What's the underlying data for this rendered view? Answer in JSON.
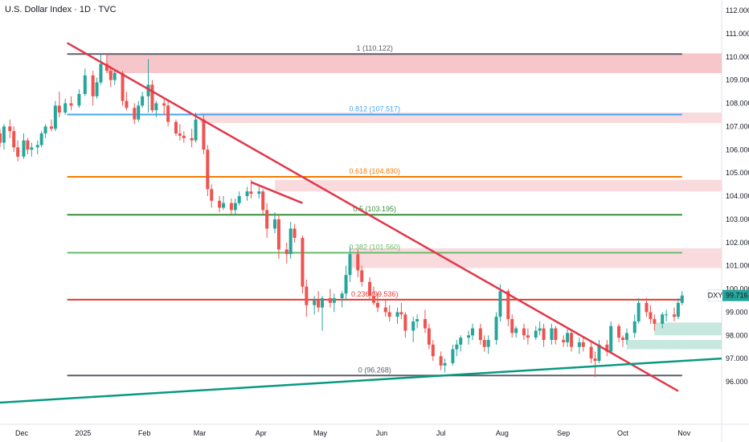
{
  "chart_data": {
    "type": "candlestick",
    "title": "U.S. Dollar Index · 1D · TVC",
    "symbol": "DXY",
    "last_price": "99.716",
    "ylim": [
      95.0,
      112.3
    ],
    "y_ticks": [
      "112.000",
      "111.000",
      "110.000",
      "109.000",
      "108.000",
      "107.000",
      "106.000",
      "105.000",
      "104.000",
      "103.000",
      "102.000",
      "101.000",
      "100.000",
      "99.000",
      "98.000",
      "97.000",
      "96.000"
    ],
    "y_tick_values": [
      112,
      111,
      110,
      109,
      108,
      107,
      106,
      105,
      104,
      103,
      102,
      101,
      100,
      99,
      98,
      97,
      96
    ],
    "x_ticks": [
      {
        "label": "Dec",
        "date": "2024-12-01"
      },
      {
        "label": "2025",
        "date": "2025-01-01"
      },
      {
        "label": "Feb",
        "date": "2025-02-01"
      },
      {
        "label": "Mar",
        "date": "2025-03-01"
      },
      {
        "label": "Apr",
        "date": "2025-04-01"
      },
      {
        "label": "May",
        "date": "2025-05-01"
      },
      {
        "label": "Jun",
        "date": "2025-06-01"
      },
      {
        "label": "Jul",
        "date": "2025-07-01"
      },
      {
        "label": "Aug",
        "date": "2025-08-01"
      },
      {
        "label": "Sep",
        "date": "2025-09-01"
      },
      {
        "label": "Oct",
        "date": "2025-10-01"
      },
      {
        "label": "Nov",
        "date": "2025-11-01"
      }
    ],
    "fib_levels": [
      {
        "label": "1 (110.122)",
        "value": 110.122,
        "color": "#5d606b"
      },
      {
        "label": "0.812 (107.517)",
        "value": 107.517,
        "color": "#42a5f5"
      },
      {
        "label": "0.618 (104.830)",
        "value": 104.83,
        "color": "#f57c00"
      },
      {
        "label": "0.5 (103.195)",
        "value": 103.195,
        "color": "#388e3c"
      },
      {
        "label": "0.382 (101.560)",
        "value": 101.56,
        "color": "#66bb6a"
      },
      {
        "label": "0.236 (99.536)",
        "value": 99.536,
        "color": "#e53935"
      },
      {
        "label": "0 (96.268)",
        "value": 96.268,
        "color": "#5d606b"
      }
    ],
    "fib_start_date": "2024-12-24",
    "candles_daily": [
      [
        "2024-11-20",
        106.7,
        106.9,
        106.1,
        106.3
      ],
      [
        "2024-11-22",
        106.3,
        107.1,
        106.0,
        107.0
      ],
      [
        "2024-11-25",
        107.0,
        107.3,
        106.5,
        106.8
      ],
      [
        "2024-11-27",
        106.8,
        107.0,
        105.9,
        106.1
      ],
      [
        "2024-11-29",
        106.1,
        106.4,
        105.5,
        105.7
      ],
      [
        "2024-12-02",
        105.7,
        106.7,
        105.6,
        106.4
      ],
      [
        "2024-12-04",
        106.4,
        106.5,
        105.8,
        106.0
      ],
      [
        "2024-12-06",
        106.0,
        106.3,
        105.7,
        106.1
      ],
      [
        "2024-12-09",
        106.1,
        106.4,
        105.8,
        106.2
      ],
      [
        "2024-12-11",
        106.2,
        106.8,
        106.1,
        106.7
      ],
      [
        "2024-12-13",
        106.7,
        107.1,
        106.5,
        107.0
      ],
      [
        "2024-12-16",
        107.0,
        107.3,
        106.8,
        106.9
      ],
      [
        "2024-12-18",
        106.9,
        108.1,
        106.8,
        107.9
      ],
      [
        "2024-12-20",
        107.9,
        108.5,
        107.4,
        107.6
      ],
      [
        "2024-12-23",
        107.6,
        108.2,
        107.5,
        108.0
      ],
      [
        "2024-12-26",
        108.0,
        108.3,
        107.7,
        107.9
      ],
      [
        "2024-12-30",
        107.9,
        108.6,
        107.8,
        108.4
      ],
      [
        "2025-01-02",
        108.4,
        109.5,
        108.3,
        109.2
      ],
      [
        "2025-01-06",
        109.2,
        109.4,
        107.9,
        108.3
      ],
      [
        "2025-01-08",
        108.3,
        109.1,
        108.2,
        108.9
      ],
      [
        "2025-01-10",
        108.9,
        110.1,
        108.8,
        109.7
      ],
      [
        "2025-01-13",
        109.7,
        110.12,
        109.3,
        109.4
      ],
      [
        "2025-01-15",
        109.4,
        109.6,
        108.7,
        109.0
      ],
      [
        "2025-01-17",
        109.0,
        109.4,
        108.8,
        109.3
      ],
      [
        "2025-01-21",
        109.3,
        109.4,
        107.9,
        108.1
      ],
      [
        "2025-01-23",
        108.1,
        108.5,
        107.7,
        107.8
      ],
      [
        "2025-01-27",
        107.8,
        108.0,
        107.1,
        107.3
      ],
      [
        "2025-01-29",
        107.3,
        108.1,
        107.2,
        107.9
      ],
      [
        "2025-01-31",
        107.9,
        108.5,
        107.8,
        108.3
      ],
      [
        "2025-02-03",
        108.3,
        109.9,
        107.6,
        108.8
      ],
      [
        "2025-02-05",
        108.8,
        109.0,
        107.6,
        107.7
      ],
      [
        "2025-02-07",
        107.7,
        108.1,
        107.4,
        108.0
      ],
      [
        "2025-02-11",
        108.0,
        108.2,
        107.5,
        107.9
      ],
      [
        "2025-02-13",
        107.9,
        108.1,
        107.0,
        107.2
      ],
      [
        "2025-02-17",
        107.2,
        107.3,
        106.6,
        106.7
      ],
      [
        "2025-02-19",
        106.7,
        107.1,
        106.4,
        106.6
      ],
      [
        "2025-02-21",
        106.6,
        106.8,
        106.3,
        106.5
      ],
      [
        "2025-02-25",
        106.5,
        106.9,
        106.1,
        106.4
      ],
      [
        "2025-02-27",
        106.4,
        107.6,
        106.3,
        107.3
      ],
      [
        "2025-03-03",
        107.3,
        107.5,
        105.8,
        106.0
      ],
      [
        "2025-03-05",
        106.0,
        106.2,
        104.0,
        104.3
      ],
      [
        "2025-03-07",
        104.3,
        104.5,
        103.5,
        103.8
      ],
      [
        "2025-03-11",
        103.8,
        104.0,
        103.3,
        103.5
      ],
      [
        "2025-03-13",
        103.5,
        104.0,
        103.4,
        103.7
      ],
      [
        "2025-03-17",
        103.7,
        103.9,
        103.2,
        103.4
      ],
      [
        "2025-03-19",
        103.4,
        103.9,
        103.2,
        103.7
      ],
      [
        "2025-03-21",
        103.7,
        104.2,
        103.6,
        104.0
      ],
      [
        "2025-03-25",
        104.0,
        104.4,
        103.8,
        104.2
      ],
      [
        "2025-03-27",
        104.2,
        104.7,
        103.9,
        104.1
      ],
      [
        "2025-03-31",
        104.1,
        104.4,
        103.9,
        104.2
      ],
      [
        "2025-04-02",
        104.2,
        104.3,
        103.2,
        103.4
      ],
      [
        "2025-04-04",
        103.4,
        103.7,
        102.2,
        102.6
      ],
      [
        "2025-04-08",
        102.6,
        103.3,
        102.4,
        103.0
      ],
      [
        "2025-04-10",
        103.0,
        103.2,
        101.3,
        101.7
      ],
      [
        "2025-04-14",
        101.7,
        102.0,
        101.1,
        101.5
      ],
      [
        "2025-04-16",
        101.5,
        102.9,
        101.3,
        102.6
      ],
      [
        "2025-04-18",
        102.6,
        102.8,
        102.0,
        102.2
      ],
      [
        "2025-04-22",
        102.2,
        102.3,
        99.8,
        100.1
      ],
      [
        "2025-04-24",
        100.1,
        100.4,
        98.8,
        99.3
      ],
      [
        "2025-04-28",
        99.3,
        99.7,
        98.9,
        99.5
      ],
      [
        "2025-04-30",
        99.5,
        99.9,
        99.0,
        99.2
      ],
      [
        "2025-05-02",
        99.2,
        99.7,
        98.2,
        99.6
      ],
      [
        "2025-05-06",
        99.6,
        100.0,
        99.2,
        99.4
      ],
      [
        "2025-05-08",
        99.4,
        99.8,
        99.0,
        99.6
      ],
      [
        "2025-05-12",
        99.6,
        99.9,
        99.2,
        99.8
      ],
      [
        "2025-05-14",
        99.8,
        101.0,
        99.5,
        100.6
      ],
      [
        "2025-05-16",
        100.6,
        101.8,
        100.3,
        101.5
      ],
      [
        "2025-05-20",
        101.5,
        101.7,
        100.5,
        100.8
      ],
      [
        "2025-05-22",
        100.8,
        101.0,
        100.1,
        100.3
      ],
      [
        "2025-05-26",
        100.3,
        100.5,
        99.5,
        99.7
      ],
      [
        "2025-05-28",
        99.7,
        100.1,
        99.3,
        99.4
      ],
      [
        "2025-05-30",
        99.4,
        99.8,
        99.0,
        99.2
      ],
      [
        "2025-06-03",
        99.2,
        99.5,
        98.8,
        99.0
      ],
      [
        "2025-06-05",
        99.0,
        99.3,
        98.6,
        98.8
      ],
      [
        "2025-06-09",
        98.8,
        99.2,
        98.5,
        99.0
      ],
      [
        "2025-06-11",
        99.0,
        99.4,
        98.7,
        98.9
      ],
      [
        "2025-06-13",
        98.9,
        99.0,
        97.9,
        98.2
      ],
      [
        "2025-06-17",
        98.2,
        98.8,
        97.7,
        98.6
      ],
      [
        "2025-06-19",
        98.6,
        98.9,
        98.3,
        98.7
      ],
      [
        "2025-06-23",
        98.7,
        99.1,
        98.1,
        98.3
      ],
      [
        "2025-06-25",
        98.3,
        98.5,
        97.4,
        97.6
      ],
      [
        "2025-06-27",
        97.6,
        97.8,
        96.9,
        97.1
      ],
      [
        "2025-07-01",
        97.1,
        97.3,
        96.5,
        96.7
      ],
      [
        "2025-07-03",
        96.7,
        97.0,
        96.4,
        96.8
      ],
      [
        "2025-07-07",
        96.8,
        97.6,
        96.7,
        97.4
      ],
      [
        "2025-07-09",
        97.4,
        97.8,
        97.1,
        97.6
      ],
      [
        "2025-07-11",
        97.6,
        98.0,
        97.3,
        97.9
      ],
      [
        "2025-07-15",
        97.9,
        98.2,
        97.6,
        98.0
      ],
      [
        "2025-07-17",
        98.0,
        98.5,
        97.8,
        98.3
      ],
      [
        "2025-07-21",
        98.3,
        98.5,
        97.6,
        97.8
      ],
      [
        "2025-07-23",
        97.8,
        98.0,
        97.3,
        97.5
      ],
      [
        "2025-07-25",
        97.5,
        98.0,
        97.2,
        97.8
      ],
      [
        "2025-07-29",
        97.8,
        99.0,
        97.6,
        98.8
      ],
      [
        "2025-07-31",
        98.8,
        100.2,
        98.6,
        99.9
      ],
      [
        "2025-08-04",
        99.9,
        100.0,
        98.4,
        98.7
      ],
      [
        "2025-08-06",
        98.7,
        98.9,
        97.9,
        98.1
      ],
      [
        "2025-08-08",
        98.1,
        98.4,
        97.9,
        98.3
      ],
      [
        "2025-08-12",
        98.3,
        98.5,
        97.8,
        98.0
      ],
      [
        "2025-08-14",
        98.0,
        98.3,
        97.6,
        97.9
      ],
      [
        "2025-08-18",
        97.9,
        98.4,
        97.8,
        98.2
      ],
      [
        "2025-08-20",
        98.2,
        98.6,
        98.0,
        98.3
      ],
      [
        "2025-08-22",
        98.3,
        98.5,
        97.5,
        97.8
      ],
      [
        "2025-08-26",
        97.8,
        98.5,
        97.6,
        98.3
      ],
      [
        "2025-08-28",
        98.3,
        98.4,
        97.6,
        97.8
      ],
      [
        "2025-09-01",
        97.8,
        98.0,
        97.5,
        97.7
      ],
      [
        "2025-09-03",
        97.7,
        98.3,
        97.5,
        98.1
      ],
      [
        "2025-09-05",
        98.1,
        98.2,
        97.3,
        97.5
      ],
      [
        "2025-09-09",
        97.5,
        97.9,
        97.2,
        97.7
      ],
      [
        "2025-09-11",
        97.7,
        97.9,
        97.3,
        97.5
      ],
      [
        "2025-09-15",
        97.5,
        97.7,
        96.8,
        97.0
      ],
      [
        "2025-09-17",
        97.0,
        97.3,
        96.2,
        96.9
      ],
      [
        "2025-09-19",
        96.9,
        97.8,
        96.8,
        97.6
      ],
      [
        "2025-09-23",
        97.6,
        97.8,
        97.1,
        97.3
      ],
      [
        "2025-09-25",
        97.3,
        98.6,
        97.2,
        98.4
      ],
      [
        "2025-09-29",
        98.4,
        98.5,
        97.7,
        97.9
      ],
      [
        "2025-10-01",
        97.9,
        98.0,
        97.5,
        97.8
      ],
      [
        "2025-10-03",
        97.8,
        98.3,
        97.6,
        98.1
      ],
      [
        "2025-10-07",
        98.1,
        98.9,
        97.9,
        98.6
      ],
      [
        "2025-10-09",
        98.6,
        99.6,
        98.5,
        99.4
      ],
      [
        "2025-10-13",
        99.4,
        99.6,
        98.8,
        99.0
      ],
      [
        "2025-10-15",
        99.0,
        99.3,
        98.5,
        98.7
      ],
      [
        "2025-10-17",
        98.7,
        98.9,
        98.2,
        98.5
      ],
      [
        "2025-10-21",
        98.5,
        99.0,
        98.3,
        98.9
      ],
      [
        "2025-10-23",
        98.9,
        99.1,
        98.6,
        98.9
      ],
      [
        "2025-10-27",
        98.9,
        99.2,
        98.6,
        98.8
      ],
      [
        "2025-10-29",
        98.8,
        99.6,
        98.7,
        99.4
      ],
      [
        "2025-10-31",
        99.4,
        99.9,
        99.3,
        99.716
      ]
    ],
    "trendlines": [
      {
        "name": "downtrend",
        "color": "#e0384a",
        "points": [
          [
            "2024-12-24",
            110.6
          ],
          [
            "2025-10-29",
            95.6
          ]
        ]
      },
      {
        "name": "short-downtrend",
        "color": "#e0384a",
        "points": [
          [
            "2025-03-27",
            104.6
          ],
          [
            "2025-04-22",
            103.7
          ]
        ]
      },
      {
        "name": "uptrend",
        "color": "#089981",
        "points": [
          [
            "2024-11-20",
            95.1
          ],
          [
            "2025-11-20",
            97.0
          ]
        ]
      }
    ],
    "zones": [
      {
        "kind": "supply",
        "color": "#f5b8be",
        "from": "2025-01-13",
        "y": [
          109.3,
          110.15
        ]
      },
      {
        "kind": "supply",
        "color": "#f8d2d6",
        "from": "2025-03-01",
        "y": [
          107.15,
          107.6
        ]
      },
      {
        "kind": "supply",
        "color": "#f8d2d6",
        "from": "2025-04-08",
        "y": [
          104.2,
          104.7
        ]
      },
      {
        "kind": "supply",
        "color": "#f8d2d6",
        "from": "2025-05-16",
        "y": [
          100.9,
          101.75
        ]
      },
      {
        "kind": "demand",
        "color": "#b9e2d6",
        "from": "2025-10-17",
        "y": [
          98.0,
          98.55
        ]
      },
      {
        "kind": "demand",
        "color": "#b9e2d6",
        "from": "2025-10-03",
        "y": [
          97.4,
          97.8
        ]
      }
    ],
    "colors": {
      "up": "#26a69a",
      "down": "#ef5350",
      "grid": "#f0f3fa",
      "axis": "#e0e3eb",
      "price_badge": "#26a69a"
    },
    "grid": false,
    "xlabel": "",
    "ylabel": ""
  }
}
